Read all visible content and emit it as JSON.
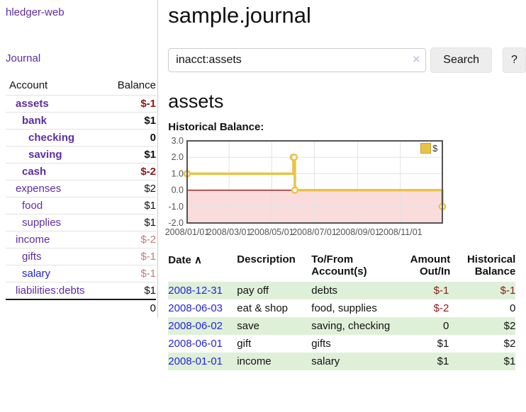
{
  "sidebar": {
    "brand": "hledger-web",
    "journal_link": "Journal",
    "accounts_table": {
      "headers": {
        "account": "Account",
        "balance": "Balance"
      },
      "rows": [
        {
          "account": "assets",
          "depth": 1,
          "bold": true,
          "balance": "$-1",
          "balance_class": "neg-strong",
          "link_class": ""
        },
        {
          "account": "bank",
          "depth": 2,
          "bold": true,
          "balance": "$1",
          "balance_class": "",
          "link_class": ""
        },
        {
          "account": "checking",
          "depth": 3,
          "bold": true,
          "balance": "0",
          "balance_class": "",
          "link_class": ""
        },
        {
          "account": "saving",
          "depth": 3,
          "bold": true,
          "balance": "$1",
          "balance_class": "",
          "link_class": ""
        },
        {
          "account": "cash",
          "depth": 2,
          "bold": true,
          "balance": "$-2",
          "balance_class": "neg-strong",
          "link_class": ""
        },
        {
          "account": "expenses",
          "depth": 1,
          "bold": false,
          "balance": "$2",
          "balance_class": "",
          "link_class": ""
        },
        {
          "account": "food",
          "depth": 2,
          "bold": false,
          "balance": "$1",
          "balance_class": "",
          "link_class": ""
        },
        {
          "account": "supplies",
          "depth": 2,
          "bold": false,
          "balance": "$1",
          "balance_class": "",
          "link_class": ""
        },
        {
          "account": "income",
          "depth": 1,
          "bold": false,
          "balance": "$-2",
          "balance_class": "neg-soft",
          "link_class": ""
        },
        {
          "account": "gifts",
          "depth": 2,
          "bold": false,
          "balance": "$-1",
          "balance_class": "neg-soft",
          "link_class": ""
        },
        {
          "account": "salary",
          "depth": 2,
          "bold": false,
          "balance": "$-1",
          "balance_class": "neg-soft",
          "link_class": "blue"
        },
        {
          "account": "liabilities:debts",
          "depth": 1,
          "bold": false,
          "balance": "$1",
          "balance_class": "",
          "link_class": ""
        }
      ],
      "total": "0"
    }
  },
  "header": {
    "title": "sample.journal"
  },
  "search": {
    "value": "inacct:assets",
    "clear_icon": "×",
    "button_label": "Search",
    "help_label": "?"
  },
  "account_page": {
    "title": "assets",
    "chart_label": "Historical Balance:"
  },
  "chart_data": {
    "type": "line",
    "title": "Historical Balance:",
    "line_style": "step-after",
    "legend": {
      "label": "$",
      "position": "top-right"
    },
    "colors": {
      "line": "#e9c347",
      "marker_fill": "#ffffff",
      "negative_region": "#fbdcdc",
      "zero_line": "#990000",
      "grid": "#e2e2e2",
      "border": "#545454",
      "tick_text": "#545454"
    },
    "ylim": [
      -2,
      3
    ],
    "xlim_days": [
      0,
      365
    ],
    "y_ticks": [
      "3.0",
      "2.0",
      "1.0",
      "0.0",
      "-1.0",
      "-2.0"
    ],
    "y_tick_values": [
      3,
      2,
      1,
      0,
      -1,
      -2
    ],
    "x_ticks": [
      {
        "label": "2008/01/01",
        "day": 0
      },
      {
        "label": "2008/03/01",
        "day": 60
      },
      {
        "label": "2008/05/01",
        "day": 121
      },
      {
        "label": "2008/07/01",
        "day": 182
      },
      {
        "label": "2008/09/01",
        "day": 244
      },
      {
        "label": "2008/11/01",
        "day": 305
      }
    ],
    "series": [
      {
        "name": "$",
        "points": [
          {
            "date": "2008-01-01",
            "day": 0,
            "value": 1
          },
          {
            "date": "2008-06-01",
            "day": 152,
            "value": 2
          },
          {
            "date": "2008-06-02",
            "day": 153,
            "value": 2
          },
          {
            "date": "2008-06-03",
            "day": 154,
            "value": 0
          },
          {
            "date": "2008-12-31",
            "day": 365,
            "value": -1
          }
        ]
      }
    ]
  },
  "register_table": {
    "headers": {
      "date": "Date",
      "sort_arrow": "∧",
      "description": "Description",
      "account": "To/From Account(s)",
      "amount": "Amount Out/In",
      "balance": "Historical Balance"
    },
    "rows": [
      {
        "date": "2008-12-31",
        "description": "pay off",
        "account": "debts",
        "amount": "$-1",
        "amount_neg": true,
        "balance": "$-1",
        "balance_neg": true,
        "stripe": true
      },
      {
        "date": "2008-06-03",
        "description": "eat & shop",
        "account": "food, supplies",
        "amount": "$-2",
        "amount_neg": true,
        "balance": "0",
        "balance_neg": false,
        "stripe": false
      },
      {
        "date": "2008-06-02",
        "description": "save",
        "account": "saving, checking",
        "amount": "0",
        "amount_neg": false,
        "balance": "$2",
        "balance_neg": false,
        "stripe": true
      },
      {
        "date": "2008-06-01",
        "description": "gift",
        "account": "gifts",
        "amount": "$1",
        "amount_neg": false,
        "balance": "$2",
        "balance_neg": false,
        "stripe": false
      },
      {
        "date": "2008-01-01",
        "description": "income",
        "account": "salary",
        "amount": "$1",
        "amount_neg": false,
        "balance": "$1",
        "balance_neg": false,
        "stripe": true
      }
    ]
  }
}
